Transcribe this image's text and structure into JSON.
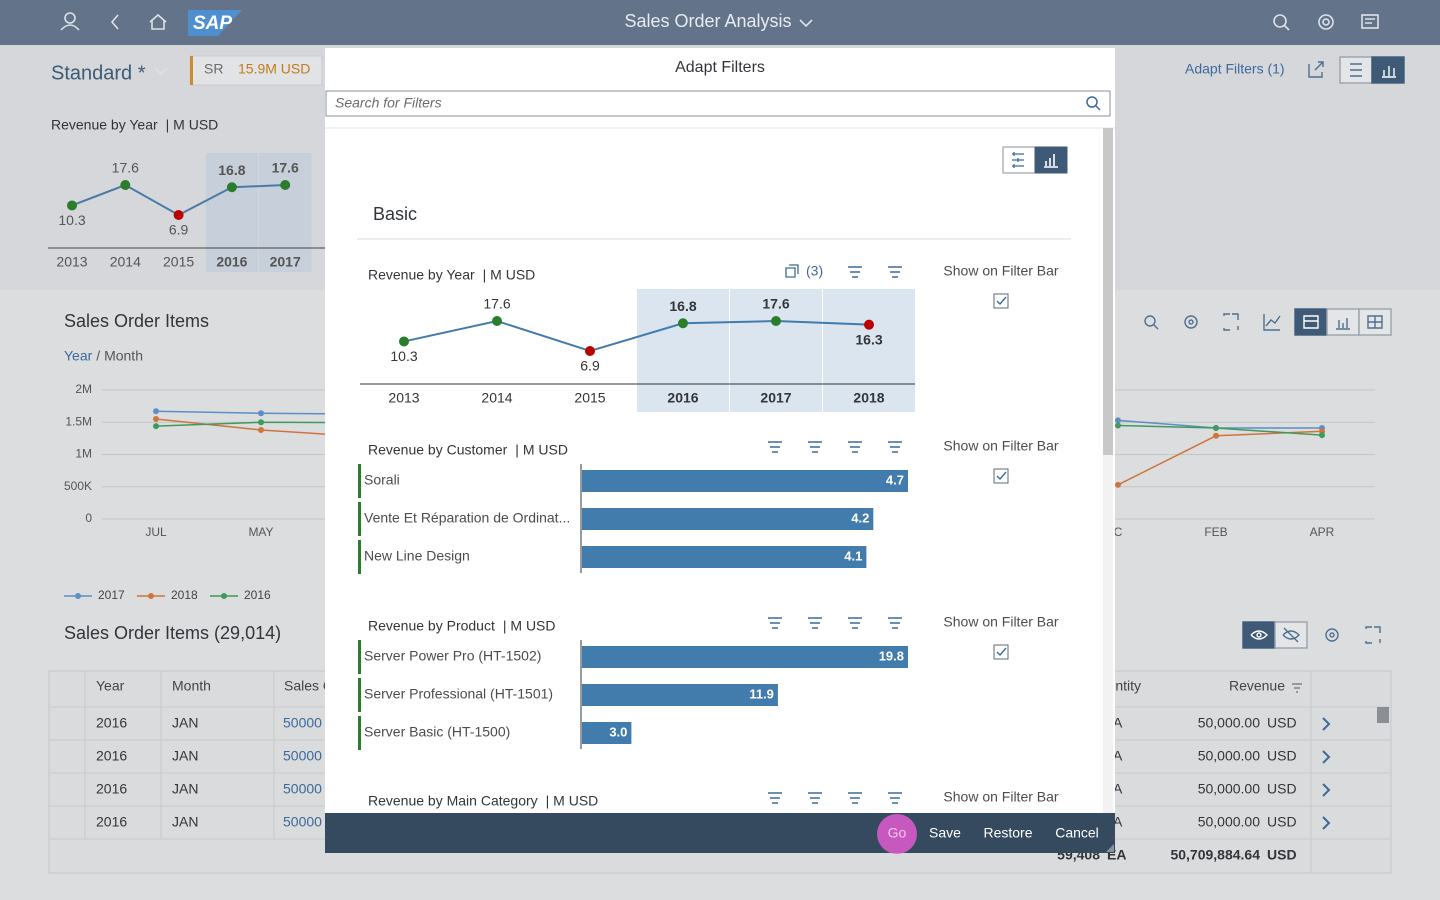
{
  "shell": {
    "logo": "SAP",
    "title": "Sales Order Analysis"
  },
  "header": {
    "variant": "Standard *",
    "filter_key": "SR",
    "filter_value": "15.9M USD",
    "adapt_filters": "Adapt Filters (1)"
  },
  "revenue_chart": {
    "title": "Revenue by Year",
    "unit": "| M USD",
    "line_color": "#4a7aa5",
    "categories": [
      "2013",
      "2014",
      "2015",
      "2016",
      "2017"
    ],
    "values": [
      10.3,
      17.6,
      6.9,
      16.8,
      17.6
    ],
    "point_colors": [
      "#2b7d2b",
      "#2b7d2b",
      "#bb0000",
      "#2b7d2b",
      "#2b7d2b"
    ],
    "selected": [
      false,
      false,
      false,
      true,
      true
    ]
  },
  "items_chart": {
    "title": "Sales Order Items",
    "drill_active": "Year",
    "drill_rest": "/ Month",
    "categories": [
      "JUL",
      "MAY",
      "C",
      "FEB",
      "APR"
    ],
    "ylim": [
      0,
      2000000
    ],
    "yticks": [
      0,
      {
        "value": 500000,
        "label": "500K"
      },
      {
        "value": 1000000,
        "label": "1M"
      },
      {
        "value": 1500000,
        "label": "1.5M"
      },
      {
        "value": 2000000,
        "label": "2M"
      }
    ],
    "grid": true,
    "series": [
      {
        "name": "2017",
        "color": "#5b8fc7",
        "values": [
          1670000,
          1640000,
          1530000,
          1410000,
          1410000
        ]
      },
      {
        "name": "2018",
        "color": "#d0743c",
        "values": [
          1550000,
          1380000,
          530000,
          1290000,
          1360000
        ]
      },
      {
        "name": "2016",
        "color": "#3f9a5c",
        "values": [
          1440000,
          1500000,
          1450000,
          1410000,
          1300000
        ]
      }
    ]
  },
  "table": {
    "title": "Sales Order Items (29,014)",
    "columns": [
      "Year",
      "Month",
      "Sales O",
      "ntity",
      "Revenue"
    ],
    "rows": [
      [
        "2016",
        "JAN",
        "50000",
        "A",
        "50,000.00",
        "USD"
      ],
      [
        "2016",
        "JAN",
        "50000",
        "A",
        "50,000.00",
        "USD"
      ],
      [
        "2016",
        "JAN",
        "50000",
        "A",
        "50,000.00",
        "USD"
      ],
      [
        "2016",
        "JAN",
        "50000",
        "A",
        "50,000.00",
        "USD"
      ]
    ],
    "totals": [
      "59,408",
      "EA",
      "50,709,884.64",
      "USD"
    ]
  },
  "dialog": {
    "title": "Adapt Filters",
    "search_placeholder": "Search for Filters",
    "group": "Basic",
    "sections": [
      {
        "title": "Revenue by Year",
        "unit": "| M USD",
        "count": "(3)",
        "show_label": "Show on Filter Bar",
        "checked": true,
        "chart": {
          "type": "line",
          "line_color": "#427cac",
          "categories": [
            "2013",
            "2014",
            "2015",
            "2016",
            "2017",
            "2018"
          ],
          "values": [
            10.3,
            17.6,
            6.9,
            16.8,
            17.6,
            16.3
          ],
          "point_colors": [
            "#2b7d2b",
            "#2b7d2b",
            "#bb0000",
            "#2b7d2b",
            "#2b7d2b",
            "#bb0000"
          ],
          "selected": [
            false,
            false,
            false,
            true,
            true,
            true
          ]
        }
      },
      {
        "title": "Revenue by Customer",
        "unit": "| M USD",
        "show_label": "Show on Filter Bar",
        "checked": true,
        "chart": {
          "type": "bar",
          "color": "#427cac",
          "categories": [
            "Sorali",
            "Vente Et Réparation de Ordinat...",
            "New Line Design"
          ],
          "values": [
            4.7,
            4.2,
            4.1
          ]
        }
      },
      {
        "title": "Revenue by Product",
        "unit": "| M USD",
        "show_label": "Show on Filter Bar",
        "checked": true,
        "chart": {
          "type": "bar",
          "color": "#427cac",
          "categories": [
            "Server Power Pro (HT-1502)",
            "Server Professional (HT-1501)",
            "Server Basic (HT-1500)"
          ],
          "values": [
            19.8,
            11.9,
            3.0
          ],
          "value_labels": [
            "19.8",
            "11.9",
            "3.0"
          ]
        }
      },
      {
        "title": "Revenue by Main Category",
        "unit": "| M USD",
        "show_label": "Show on Filter Bar"
      }
    ],
    "buttons": [
      "Go",
      "Save",
      "Restore",
      "Cancel"
    ]
  }
}
